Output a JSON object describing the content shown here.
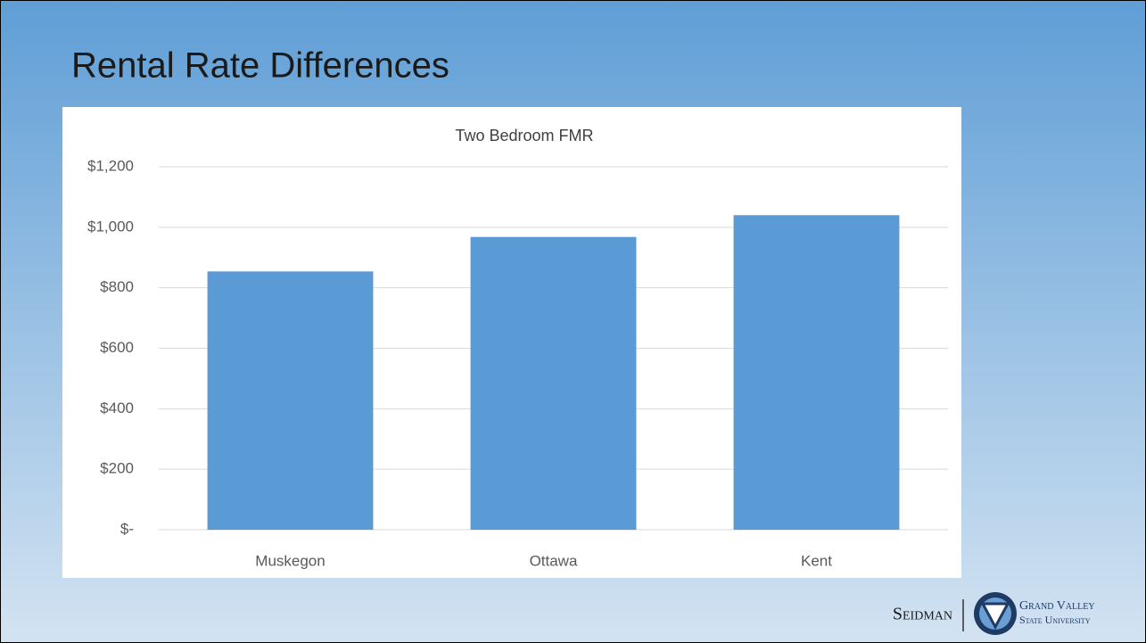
{
  "slide_title": "Rental Rate Differences",
  "logo": {
    "left": "Seidman",
    "right_top": "Grand Valley",
    "right_bottom": "State University"
  },
  "chart_data": {
    "type": "bar",
    "title": "Two Bedroom FMR",
    "categories": [
      "Muskegon",
      "Ottawa",
      "Kent"
    ],
    "values": [
      854,
      968,
      1040
    ],
    "color": "#5b9bd5",
    "ylim": [
      0,
      1200
    ],
    "yticks": [
      {
        "value": 0,
        "label": "$-"
      },
      {
        "value": 200,
        "label": "$200"
      },
      {
        "value": 400,
        "label": "$400"
      },
      {
        "value": 600,
        "label": "$600"
      },
      {
        "value": 800,
        "label": "$800"
      },
      {
        "value": 1000,
        "label": "$1,000"
      },
      {
        "value": 1200,
        "label": "$1,200"
      }
    ],
    "grid": true
  }
}
